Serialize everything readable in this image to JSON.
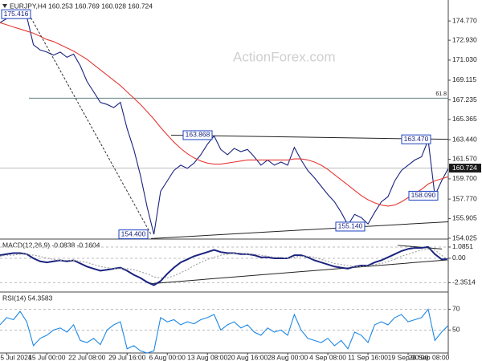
{
  "chart_data": [
    {
      "type": "line",
      "title": "EURJPY,H4 160.253 160.769 160.028 160.724",
      "watermark": "ActionForex.com",
      "categories": [
        null,
        "5 Jul 2024",
        null,
        null,
        null,
        null,
        null,
        "15 Jul 00:00",
        null,
        null,
        null,
        null,
        null,
        "22 Jul 08:00",
        null,
        null,
        null,
        null,
        null,
        "29 Jul 16:00",
        null,
        null,
        null,
        null,
        null,
        "6 Aug 00:00",
        null,
        null,
        null,
        null,
        null,
        "13 Aug 08:00",
        null,
        null,
        null,
        null,
        null,
        "20 Aug 16:00",
        null,
        null,
        null,
        null,
        null,
        "28 Aug 00:00",
        null,
        null,
        null,
        null,
        null,
        "4 Sep 08:00",
        null,
        null,
        null,
        null,
        null,
        "11 Sep 16:00",
        null,
        null,
        null,
        null,
        null,
        "19 Sep 00:00",
        null,
        null,
        null,
        null,
        null,
        "26 Sep 08:00"
      ],
      "series": [
        {
          "color": "#1a237e",
          "values": [
            174.6,
            175.0,
            175.2,
            175.4,
            175.2,
            172.5,
            172.0,
            171.8,
            171.5,
            171.8,
            171.3,
            171.6,
            170.5,
            169.0,
            168.0,
            167.0,
            166.8,
            166.5,
            167.0,
            164.5,
            162.5,
            160.0,
            157.0,
            154.4,
            158.5,
            159.5,
            160.5,
            161.0,
            160.7,
            161.2,
            162.0,
            163.0,
            163.8,
            162.5,
            162.0,
            162.6,
            162.3,
            162.5,
            161.8,
            161.0,
            161.5,
            161.0,
            161.3,
            161.0,
            162.7,
            161.5,
            160.5,
            159.8,
            159.0,
            158.2,
            157.5,
            156.5,
            155.3,
            156.3,
            156.0,
            155.4,
            156.5,
            157.5,
            158.0,
            159.5,
            160.5,
            161.0,
            161.5,
            161.8,
            163.4,
            158.1,
            159.5,
            160.7
          ]
        },
        {
          "color": "#e53935",
          "values": [
            174.6,
            174.4,
            174.2,
            174.0,
            173.8,
            173.6,
            173.3,
            173.0,
            172.8,
            172.5,
            172.2,
            171.9,
            171.5,
            171.1,
            170.6,
            170.1,
            169.6,
            169.1,
            168.6,
            168.0,
            167.4,
            166.8,
            166.1,
            165.4,
            164.6,
            163.9,
            163.2,
            162.6,
            162.1,
            161.7,
            161.4,
            161.2,
            161.1,
            161.1,
            161.2,
            161.3,
            161.4,
            161.5,
            161.5,
            161.5,
            161.5,
            161.5,
            161.5,
            161.5,
            161.6,
            161.6,
            161.5,
            161.3,
            161.0,
            160.6,
            160.1,
            159.6,
            159.1,
            158.6,
            158.1,
            157.7,
            157.4,
            157.2,
            157.1,
            157.2,
            157.5,
            157.9,
            158.3,
            158.7,
            159.2,
            159.5,
            159.7,
            159.9
          ]
        }
      ],
      "ylim": [
        153.95,
        176.77
      ],
      "yticks": [
        {
          "value": 174.77,
          "label": "174.770"
        },
        {
          "value": 172.93,
          "label": "172.930"
        },
        {
          "value": 171.03,
          "label": "171.030"
        },
        169.115,
        167.235,
        165.365,
        {
          "value": 163.44,
          "label": "163.440"
        },
        {
          "value": 161.57,
          "label": "161.570"
        },
        {
          "value": 159.7,
          "label": "159.700"
        },
        {
          "value": 157.77,
          "label": "157.770"
        },
        155.905,
        154.025
      ],
      "last_price": 160.724,
      "fib_level": {
        "label": "61.8",
        "price": 167.4
      },
      "annotations": [
        {
          "value": 175.416,
          "label": "175.416"
        },
        {
          "value": 163.868,
          "label": "163.868"
        },
        {
          "value": 163.47,
          "label": "163.470"
        },
        {
          "value": 158.09,
          "label": "158.090"
        },
        {
          "value": 154.4,
          "label": "154.400"
        },
        {
          "value": 155.14,
          "label": "155.140"
        }
      ],
      "trendlines": [
        [
          163.868,
          163.47
        ],
        [
          154.0,
          155.6
        ]
      ]
    },
    {
      "type": "line",
      "title": "MACD(12,26,9) -0.0838 -0.1604",
      "series": [
        {
          "color": "#1a237e",
          "values": [
            0.3,
            0.4,
            0.5,
            0.5,
            0.4,
            0.0,
            -0.3,
            -0.4,
            -0.3,
            -0.2,
            -0.3,
            -0.2,
            -0.5,
            -0.8,
            -1.0,
            -1.2,
            -1.1,
            -1.0,
            -0.9,
            -1.2,
            -1.6,
            -1.9,
            -2.3,
            -2.6,
            -2.2,
            -1.5,
            -0.9,
            -0.4,
            -0.1,
            0.2,
            0.4,
            0.6,
            0.8,
            0.6,
            0.5,
            0.5,
            0.4,
            0.4,
            0.3,
            0.1,
            0.1,
            0.0,
            0.0,
            0.0,
            0.3,
            0.3,
            0.1,
            -0.2,
            -0.4,
            -0.6,
            -0.8,
            -0.9,
            -1.0,
            -0.8,
            -0.7,
            -0.7,
            -0.4,
            -0.2,
            0.1,
            0.4,
            0.7,
            0.9,
            1.0,
            1.0,
            1.1,
            0.4,
            -0.1,
            -0.08
          ]
        },
        {
          "color": "#9e9e9e",
          "values": [
            0.2,
            0.3,
            0.3,
            0.4,
            0.4,
            0.3,
            0.2,
            0.0,
            -0.1,
            -0.2,
            -0.2,
            -0.2,
            -0.3,
            -0.4,
            -0.6,
            -0.8,
            -0.9,
            -1.0,
            -1.0,
            -1.0,
            -1.1,
            -1.3,
            -1.5,
            -1.8,
            -1.9,
            -1.9,
            -1.7,
            -1.4,
            -1.1,
            -0.7,
            -0.4,
            -0.1,
            0.1,
            0.3,
            0.4,
            0.5,
            0.5,
            0.4,
            0.4,
            0.3,
            0.2,
            0.1,
            0.1,
            0.0,
            0.1,
            0.2,
            0.2,
            0.1,
            -0.1,
            -0.3,
            -0.5,
            -0.6,
            -0.7,
            -0.8,
            -0.8,
            -0.7,
            -0.6,
            -0.5,
            -0.3,
            -0.1,
            0.2,
            0.4,
            0.6,
            0.8,
            0.9,
            0.8,
            0.3,
            -0.16
          ]
        }
      ],
      "ylim": [
        -3.1,
        1.7
      ],
      "yticks": [
        1.0851,
        {
          "value": 0,
          "label": "0.00"
        },
        -2.3514
      ],
      "trendlines": [
        [
          -2.45,
          -0.15
        ],
        [
          1.25,
          0.9
        ]
      ]
    },
    {
      "type": "line",
      "title": "RSI(14) 54.3583",
      "series": [
        {
          "color": "#1e88e5",
          "values": [
            55,
            62,
            60,
            68,
            58,
            35,
            42,
            45,
            50,
            52,
            48,
            55,
            40,
            38,
            42,
            36,
            50,
            55,
            58,
            32,
            35,
            30,
            28,
            30,
            62,
            58,
            60,
            55,
            58,
            56,
            60,
            62,
            65,
            50,
            55,
            58,
            52,
            55,
            48,
            45,
            52,
            48,
            50,
            45,
            65,
            50,
            42,
            40,
            38,
            42,
            35,
            40,
            32,
            48,
            45,
            38,
            55,
            58,
            55,
            62,
            65,
            58,
            60,
            62,
            70,
            40,
            48,
            54.4
          ]
        }
      ],
      "ylim": [
        28,
        85
      ],
      "yticks": [
        70,
        50
      ]
    }
  ]
}
